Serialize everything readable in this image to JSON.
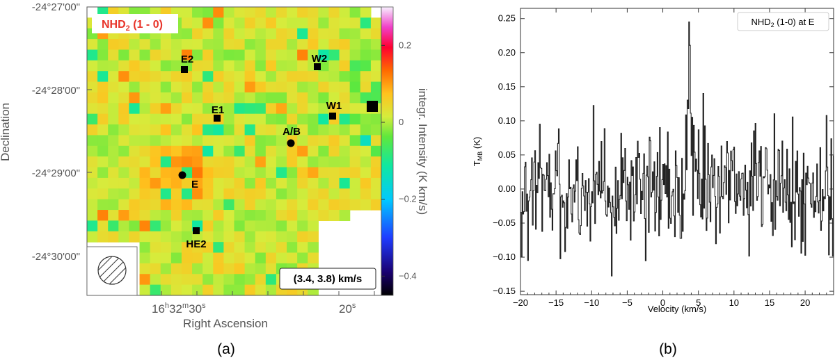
{
  "chart_data": [
    {
      "type": "heatmap",
      "panel_label": "(a)",
      "title": "NHD2 (1 - 0)",
      "title_main": "NHD",
      "title_sub": "2",
      "title_rest": " (1 - 0)",
      "xlabel": "Right Ascension",
      "ylabel": "Declination",
      "colorbar_label": "integr. Intensity (K km/s)",
      "colorbar_range": [
        -0.45,
        0.3
      ],
      "colorbar_ticks": [
        0.2,
        0,
        -0.2,
        -0.4
      ],
      "colorbar_tick_labels": [
        "0.2",
        "0",
        "−0.2",
        "−0.4"
      ],
      "velocity_range_label": "(3.4, 3.8) km/s",
      "y_ticks": [
        {
          "dec_arcmin_offset": 0,
          "label": "-24°27'00\""
        },
        {
          "dec_arcmin_offset": 1,
          "label": "-24°28'00\""
        },
        {
          "dec_arcmin_offset": 2,
          "label": "-24°29'00\""
        },
        {
          "dec_arcmin_offset": 3,
          "label": "-24°30'00\""
        }
      ],
      "x_ticks": [
        {
          "ra_s": 30,
          "label_h": "16",
          "label_m": "32",
          "label_s": "30"
        },
        {
          "ra_s": 20,
          "label_s": "20"
        }
      ],
      "sources": [
        {
          "name": "E2",
          "marker": "square"
        },
        {
          "name": "W2",
          "marker": "square"
        },
        {
          "name": "E1",
          "marker": "square"
        },
        {
          "name": "W1",
          "marker": "square"
        },
        {
          "name": "A/B",
          "marker": "circle"
        },
        {
          "name": "E",
          "marker": "circle"
        },
        {
          "name": "HE2",
          "marker": "square"
        }
      ],
      "beam": "hatched circle"
    },
    {
      "type": "line",
      "panel_label": "(b)",
      "legend": "NHD2 (1-0) at E",
      "legend_main": "NHD",
      "legend_sub": "2",
      "legend_rest": " (1-0) at E",
      "xlabel": "Velocity (km/s)",
      "ylabel_main": "T",
      "ylabel_sub": "MB",
      "ylabel_rest": " (K)",
      "xlim": [
        -20,
        24
      ],
      "ylim": [
        -0.155,
        0.265
      ],
      "x_ticks": [
        -20,
        -15,
        -10,
        -5,
        0,
        5,
        10,
        15,
        20
      ],
      "x_tick_labels": [
        "−20",
        "−15",
        "−10",
        "−5",
        "0",
        "5",
        "10",
        "15",
        "20"
      ],
      "y_ticks": [
        -0.15,
        -0.1,
        -0.05,
        0.0,
        0.05,
        0.1,
        0.15,
        0.2,
        0.25
      ],
      "y_tick_labels": [
        "−0.15",
        "−0.10",
        "−0.05",
        "0.00",
        "0.05",
        "0.10",
        "0.15",
        "0.20",
        "0.25"
      ],
      "series": [
        {
          "name": "NHD2 (1-0) at E",
          "step": true,
          "velocity_start": -20,
          "channel_width": 0.111,
          "line_peak_velocity": 3.6,
          "line_peak_tmb": 0.245
        }
      ]
    }
  ]
}
